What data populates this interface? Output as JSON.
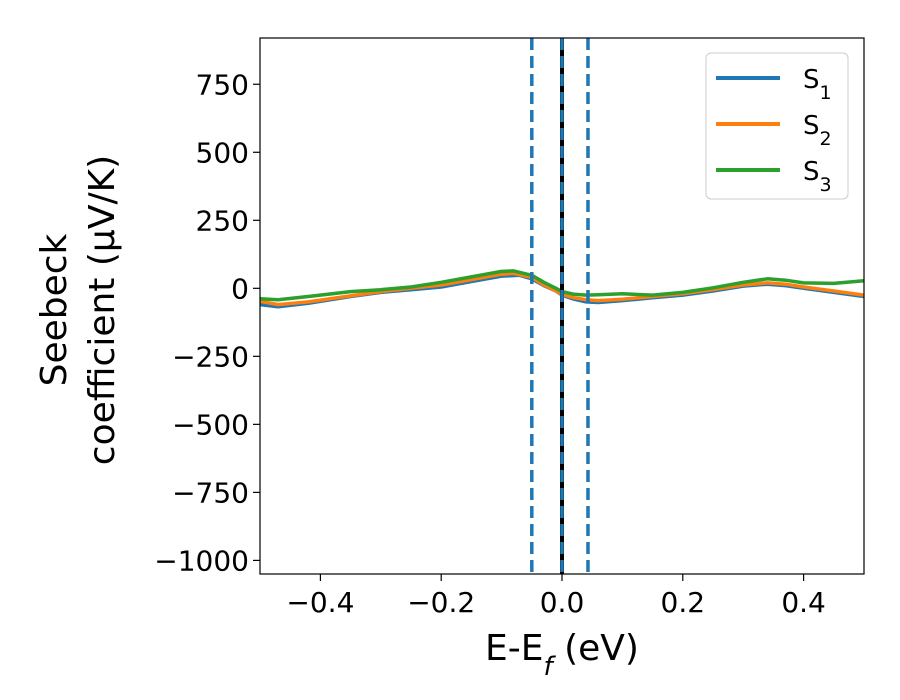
{
  "chart_data": {
    "type": "line",
    "xlabel_main": "E-E",
    "xlabel_sub": "f",
    "xlabel_unit": " (eV)",
    "ylabel_line1": "Seebeck",
    "ylabel_line2": "coefficient  (μV/K)",
    "xlim": [
      -0.5,
      0.5
    ],
    "ylim": [
      -1050,
      920
    ],
    "xticks": [
      -0.4,
      -0.2,
      0.0,
      0.2,
      0.4
    ],
    "xtick_labels": [
      "−0.4",
      "−0.2",
      "0.0",
      "0.2",
      "0.4"
    ],
    "yticks": [
      750,
      500,
      250,
      0,
      -250,
      -500,
      -750,
      -1000
    ],
    "ytick_labels": [
      "750",
      "500",
      "250",
      "0",
      "−250",
      "−500",
      "−750",
      "−1000"
    ],
    "grid": false,
    "legend_position": "top-right",
    "series": [
      {
        "name": "S",
        "sub": "1",
        "color": "#1f77b4",
        "x": [
          -0.5,
          -0.47,
          -0.42,
          -0.35,
          -0.3,
          -0.25,
          -0.2,
          -0.15,
          -0.1,
          -0.07,
          -0.05,
          -0.03,
          -0.01,
          0.0,
          0.02,
          0.04,
          0.06,
          0.1,
          0.15,
          0.2,
          0.25,
          0.3,
          0.34,
          0.37,
          0.4,
          0.45,
          0.5
        ],
        "y": [
          -60,
          -68,
          -55,
          -30,
          -15,
          -5,
          5,
          25,
          45,
          48,
          35,
          10,
          -10,
          -25,
          -40,
          -50,
          -52,
          -45,
          -35,
          -25,
          -10,
          8,
          15,
          10,
          0,
          -15,
          -30
        ]
      },
      {
        "name": "S",
        "sub": "2",
        "color": "#ff7f0e",
        "x": [
          -0.5,
          -0.47,
          -0.42,
          -0.35,
          -0.3,
          -0.25,
          -0.2,
          -0.15,
          -0.1,
          -0.08,
          -0.05,
          -0.03,
          -0.01,
          0.0,
          0.02,
          0.04,
          0.06,
          0.1,
          0.15,
          0.2,
          0.25,
          0.3,
          0.34,
          0.37,
          0.4,
          0.45,
          0.5
        ],
        "y": [
          -48,
          -60,
          -50,
          -28,
          -12,
          0,
          12,
          32,
          52,
          55,
          40,
          12,
          -10,
          -22,
          -35,
          -42,
          -45,
          -40,
          -30,
          -20,
          -5,
          12,
          20,
          15,
          5,
          -10,
          -25
        ]
      },
      {
        "name": "S",
        "sub": "3",
        "color": "#2ca02c",
        "x": [
          -0.5,
          -0.47,
          -0.42,
          -0.35,
          -0.3,
          -0.25,
          -0.2,
          -0.15,
          -0.1,
          -0.08,
          -0.05,
          -0.03,
          -0.01,
          0.0,
          0.02,
          0.04,
          0.06,
          0.1,
          0.15,
          0.2,
          0.25,
          0.3,
          0.34,
          0.37,
          0.4,
          0.45,
          0.5
        ],
        "y": [
          -38,
          -42,
          -30,
          -12,
          -5,
          5,
          22,
          42,
          62,
          64,
          48,
          22,
          0,
          -12,
          -22,
          -25,
          -24,
          -20,
          -25,
          -15,
          2,
          22,
          35,
          30,
          20,
          18,
          28
        ]
      }
    ],
    "vlines": [
      {
        "x": -0.05,
        "style": "dashed",
        "color": "#1f77b4"
      },
      {
        "x": 0.0,
        "style": "solid",
        "color": "#000000"
      },
      {
        "x": 0.0,
        "style": "dashed",
        "color": "#1f77b4"
      },
      {
        "x": 0.043,
        "style": "dashed",
        "color": "#1f77b4"
      }
    ]
  }
}
